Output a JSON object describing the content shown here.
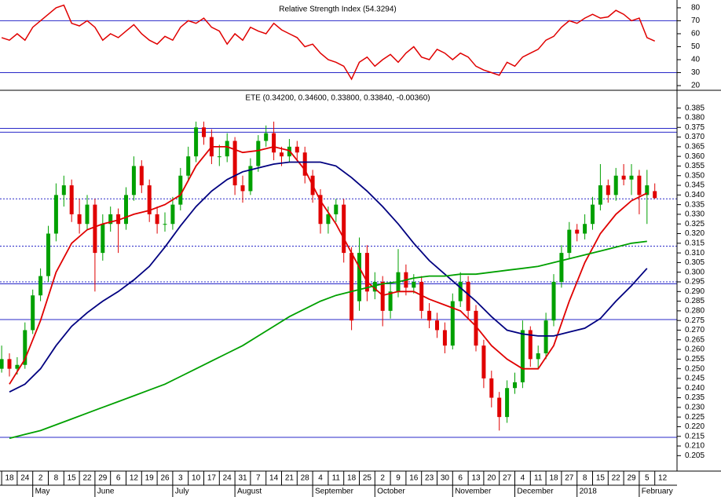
{
  "chart_data": {
    "type": "candlestick",
    "title": "ETE (0.34200, 0.34600, 0.33800, 0.33840, -0.00360)",
    "categories": [
      "18",
      "24",
      "2",
      "8",
      "15",
      "22",
      "29",
      "6",
      "12",
      "19",
      "26",
      "3",
      "10",
      "17",
      "24",
      "31",
      "7",
      "14",
      "21",
      "28",
      "4",
      "11",
      "18",
      "25",
      "2",
      "9",
      "16",
      "23",
      "30",
      "6",
      "13",
      "20",
      "27",
      "4",
      "11",
      "18",
      "27",
      "8",
      "15",
      "22",
      "29",
      "5",
      "12"
    ],
    "months": [
      null,
      null,
      "May",
      null,
      null,
      null,
      "June",
      null,
      null,
      null,
      null,
      "July",
      null,
      null,
      null,
      "August",
      null,
      null,
      null,
      null,
      "September",
      null,
      null,
      null,
      "October",
      null,
      null,
      null,
      null,
      "November",
      null,
      null,
      null,
      "December",
      null,
      null,
      null,
      "2018",
      null,
      null,
      null,
      "February",
      null
    ],
    "x": [
      -0.5,
      0,
      0.5,
      1,
      1.5,
      2,
      2.5,
      3,
      3.5,
      4,
      4.5,
      5,
      5.5,
      6,
      6.5,
      7,
      7.5,
      8,
      8.5,
      9,
      9.5,
      10,
      10.5,
      11,
      11.5,
      12,
      12.5,
      13,
      13.5,
      14,
      14.5,
      15,
      15.5,
      16,
      16.5,
      17,
      17.5,
      18,
      18.5,
      19,
      19.5,
      20,
      20.5,
      21,
      21.5,
      22,
      22.5,
      23,
      23.5,
      24,
      24.5,
      25,
      25.5,
      26,
      26.5,
      27,
      27.5,
      28,
      28.5,
      29,
      29.5,
      30,
      30.5,
      31,
      31.5,
      32,
      32.5,
      33,
      33.5,
      34,
      34.5,
      35,
      35.5,
      36,
      36.5,
      37,
      37.5,
      38,
      38.5,
      39,
      39.5,
      40,
      40.5,
      41,
      41.5
    ],
    "ohlc": [
      [
        0.25,
        0.262,
        0.248,
        0.255
      ],
      [
        0.255,
        0.258,
        0.246,
        0.25
      ],
      [
        0.25,
        0.256,
        0.247,
        0.252
      ],
      [
        0.252,
        0.274,
        0.25,
        0.27
      ],
      [
        0.27,
        0.291,
        0.268,
        0.288
      ],
      [
        0.288,
        0.302,
        0.285,
        0.298
      ],
      [
        0.298,
        0.324,
        0.295,
        0.32
      ],
      [
        0.32,
        0.346,
        0.316,
        0.34
      ],
      [
        0.34,
        0.35,
        0.334,
        0.345
      ],
      [
        0.345,
        0.348,
        0.326,
        0.33
      ],
      [
        0.33,
        0.338,
        0.32,
        0.325
      ],
      [
        0.325,
        0.34,
        0.322,
        0.335
      ],
      [
        0.335,
        0.338,
        0.29,
        0.31
      ],
      [
        0.31,
        0.33,
        0.306,
        0.325
      ],
      [
        0.325,
        0.334,
        0.321,
        0.33
      ],
      [
        0.33,
        0.333,
        0.31,
        0.325
      ],
      [
        0.325,
        0.344,
        0.322,
        0.34
      ],
      [
        0.34,
        0.36,
        0.337,
        0.355
      ],
      [
        0.355,
        0.358,
        0.341,
        0.345
      ],
      [
        0.345,
        0.348,
        0.326,
        0.33
      ],
      [
        0.33,
        0.334,
        0.32,
        0.325
      ],
      [
        0.325,
        0.331,
        0.321,
        0.325
      ],
      [
        0.325,
        0.339,
        0.322,
        0.335
      ],
      [
        0.335,
        0.354,
        0.332,
        0.35
      ],
      [
        0.35,
        0.365,
        0.347,
        0.36
      ],
      [
        0.36,
        0.378,
        0.357,
        0.375
      ],
      [
        0.375,
        0.378,
        0.366,
        0.37
      ],
      [
        0.37,
        0.374,
        0.356,
        0.36
      ],
      [
        0.36,
        0.366,
        0.355,
        0.36
      ],
      [
        0.36,
        0.372,
        0.357,
        0.368
      ],
      [
        0.368,
        0.37,
        0.34,
        0.345
      ],
      [
        0.345,
        0.35,
        0.336,
        0.342
      ],
      [
        0.342,
        0.359,
        0.34,
        0.355
      ],
      [
        0.355,
        0.371,
        0.352,
        0.368
      ],
      [
        0.368,
        0.376,
        0.365,
        0.372
      ],
      [
        0.372,
        0.378,
        0.358,
        0.362
      ],
      [
        0.362,
        0.365,
        0.355,
        0.36
      ],
      [
        0.36,
        0.369,
        0.357,
        0.365
      ],
      [
        0.365,
        0.368,
        0.358,
        0.362
      ],
      [
        0.362,
        0.365,
        0.346,
        0.35
      ],
      [
        0.35,
        0.353,
        0.336,
        0.34
      ],
      [
        0.34,
        0.343,
        0.32,
        0.325
      ],
      [
        0.325,
        0.334,
        0.32,
        0.33
      ],
      [
        0.33,
        0.338,
        0.326,
        0.335
      ],
      [
        0.335,
        0.338,
        0.305,
        0.31
      ],
      [
        0.31,
        0.313,
        0.27,
        0.275
      ],
      [
        0.285,
        0.318,
        0.28,
        0.31
      ],
      [
        0.31,
        0.314,
        0.285,
        0.29
      ],
      [
        0.29,
        0.3,
        0.286,
        0.295
      ],
      [
        0.295,
        0.298,
        0.272,
        0.28
      ],
      [
        0.28,
        0.294,
        0.276,
        0.29
      ],
      [
        0.29,
        0.312,
        0.287,
        0.3
      ],
      [
        0.3,
        0.304,
        0.288,
        0.292
      ],
      [
        0.292,
        0.299,
        0.289,
        0.295
      ],
      [
        0.295,
        0.298,
        0.276,
        0.28
      ],
      [
        0.28,
        0.284,
        0.271,
        0.275
      ],
      [
        0.275,
        0.279,
        0.266,
        0.27
      ],
      [
        0.27,
        0.274,
        0.258,
        0.262
      ],
      [
        0.262,
        0.289,
        0.26,
        0.285
      ],
      [
        0.285,
        0.3,
        0.282,
        0.295
      ],
      [
        0.295,
        0.298,
        0.276,
        0.28
      ],
      [
        0.28,
        0.283,
        0.259,
        0.262
      ],
      [
        0.262,
        0.265,
        0.24,
        0.245
      ],
      [
        0.245,
        0.249,
        0.23,
        0.235
      ],
      [
        0.235,
        0.238,
        0.218,
        0.225
      ],
      [
        0.225,
        0.244,
        0.222,
        0.24
      ],
      [
        0.24,
        0.248,
        0.237,
        0.243
      ],
      [
        0.243,
        0.275,
        0.24,
        0.27
      ],
      [
        0.27,
        0.272,
        0.251,
        0.255
      ],
      [
        0.255,
        0.262,
        0.25,
        0.258
      ],
      [
        0.258,
        0.279,
        0.255,
        0.275
      ],
      [
        0.275,
        0.299,
        0.272,
        0.295
      ],
      [
        0.295,
        0.314,
        0.292,
        0.31
      ],
      [
        0.31,
        0.326,
        0.307,
        0.322
      ],
      [
        0.322,
        0.325,
        0.316,
        0.32
      ],
      [
        0.32,
        0.33,
        0.317,
        0.325
      ],
      [
        0.325,
        0.339,
        0.322,
        0.335
      ],
      [
        0.335,
        0.356,
        0.332,
        0.345
      ],
      [
        0.345,
        0.348,
        0.336,
        0.34
      ],
      [
        0.34,
        0.354,
        0.337,
        0.35
      ],
      [
        0.35,
        0.356,
        0.345,
        0.348
      ],
      [
        0.348,
        0.356,
        0.34,
        0.35
      ],
      [
        0.35,
        0.353,
        0.33,
        0.34
      ],
      [
        0.34,
        0.353,
        0.325,
        0.345
      ],
      [
        0.342,
        0.346,
        0.338,
        0.3384
      ]
    ],
    "up_color": "#00a000",
    "down_color": "#e00000",
    "series": [
      {
        "color": "#e00000",
        "x": [
          0,
          1,
          2,
          3,
          4,
          5,
          6,
          7,
          8,
          9,
          10,
          11,
          12,
          13,
          14,
          15,
          16,
          17,
          18,
          19,
          20,
          21,
          22,
          23,
          24,
          25,
          26,
          27,
          28,
          29,
          30,
          31,
          32,
          33,
          34,
          35,
          36,
          37,
          38,
          39,
          40,
          41
        ],
        "values": [
          0.242,
          0.255,
          0.275,
          0.3,
          0.315,
          0.322,
          0.325,
          0.327,
          0.33,
          0.332,
          0.335,
          0.34,
          0.355,
          0.365,
          0.365,
          0.362,
          0.363,
          0.365,
          0.363,
          0.353,
          0.337,
          0.325,
          0.31,
          0.295,
          0.288,
          0.29,
          0.29,
          0.286,
          0.283,
          0.28,
          0.272,
          0.262,
          0.255,
          0.25,
          0.25,
          0.262,
          0.285,
          0.305,
          0.32,
          0.33,
          0.337,
          0.341
        ]
      },
      {
        "color": "#000080",
        "x": [
          0,
          1,
          2,
          3,
          4,
          5,
          6,
          7,
          8,
          9,
          10,
          11,
          12,
          13,
          14,
          15,
          16,
          17,
          18,
          19,
          20,
          21,
          22,
          23,
          24,
          25,
          26,
          27,
          28,
          29,
          30,
          31,
          32,
          33,
          34,
          35,
          36,
          37,
          38,
          39,
          40,
          41
        ],
        "values": [
          0.238,
          0.242,
          0.25,
          0.262,
          0.272,
          0.279,
          0.285,
          0.29,
          0.296,
          0.303,
          0.313,
          0.324,
          0.334,
          0.342,
          0.348,
          0.352,
          0.354,
          0.356,
          0.357,
          0.357,
          0.357,
          0.355,
          0.349,
          0.342,
          0.334,
          0.325,
          0.315,
          0.306,
          0.299,
          0.292,
          0.285,
          0.277,
          0.27,
          0.268,
          0.267,
          0.267,
          0.269,
          0.271,
          0.276,
          0.285,
          0.293,
          0.302
        ]
      },
      {
        "color": "#00a000",
        "x": [
          0,
          1,
          2,
          3,
          4,
          5,
          6,
          7,
          8,
          9,
          10,
          11,
          12,
          13,
          14,
          15,
          16,
          17,
          18,
          19,
          20,
          21,
          22,
          23,
          24,
          25,
          26,
          27,
          28,
          29,
          30,
          31,
          32,
          33,
          34,
          35,
          36,
          37,
          38,
          39,
          40,
          41
        ],
        "values": [
          0.214,
          0.216,
          0.218,
          0.221,
          0.224,
          0.227,
          0.23,
          0.233,
          0.236,
          0.239,
          0.242,
          0.246,
          0.25,
          0.254,
          0.258,
          0.262,
          0.267,
          0.272,
          0.277,
          0.281,
          0.285,
          0.288,
          0.29,
          0.292,
          0.294,
          0.295,
          0.297,
          0.298,
          0.298,
          0.299,
          0.299,
          0.3,
          0.301,
          0.302,
          0.303,
          0.305,
          0.307,
          0.309,
          0.311,
          0.313,
          0.315,
          0.316
        ]
      }
    ],
    "levels": [
      {
        "value": 0.3745,
        "style": "solid"
      },
      {
        "value": 0.3725,
        "style": "solid"
      },
      {
        "value": 0.338,
        "style": "dotted"
      },
      {
        "value": 0.3135,
        "style": "dotted"
      },
      {
        "value": 0.295,
        "style": "dotted"
      },
      {
        "value": 0.294,
        "style": "solid"
      },
      {
        "value": 0.2755,
        "style": "solid"
      },
      {
        "value": 0.2145,
        "style": "solid"
      }
    ],
    "level_color": "#2828c8",
    "ylim": [
      0.197,
      0.393
    ],
    "yticks": [
      0.205,
      {
        "value": 0.21,
        "label": "0.210"
      },
      0.215,
      {
        "value": 0.22,
        "label": "0.220"
      },
      0.225,
      {
        "value": 0.23,
        "label": "0.230"
      },
      0.235,
      {
        "value": 0.24,
        "label": "0.240"
      },
      0.245,
      {
        "value": 0.25,
        "label": "0.250"
      },
      0.255,
      {
        "value": 0.26,
        "label": "0.260"
      },
      0.265,
      {
        "value": 0.27,
        "label": "0.270"
      },
      0.275,
      {
        "value": 0.28,
        "label": "0.280"
      },
      0.285,
      {
        "value": 0.29,
        "label": "0.290"
      },
      0.295,
      {
        "value": 0.3,
        "label": "0.300"
      },
      0.305,
      {
        "value": 0.31,
        "label": "0.310"
      },
      0.315,
      {
        "value": 0.32,
        "label": "0.320"
      },
      0.325,
      {
        "value": 0.33,
        "label": "0.330"
      },
      0.335,
      {
        "value": 0.34,
        "label": "0.340"
      },
      0.345,
      {
        "value": 0.35,
        "label": "0.350"
      },
      0.355,
      {
        "value": 0.36,
        "label": "0.360"
      },
      0.365,
      {
        "value": 0.37,
        "label": "0.370"
      },
      0.375,
      {
        "value": 0.38,
        "label": "0.380"
      },
      0.385
    ],
    "rsi": {
      "title": "Relative Strength Index (54.3294)",
      "color": "#e00000",
      "values": [
        57,
        55,
        60,
        55,
        65,
        70,
        75,
        80,
        82,
        68,
        66,
        70,
        65,
        55,
        60,
        57,
        62,
        67,
        60,
        55,
        52,
        58,
        55,
        65,
        70,
        68,
        72,
        65,
        62,
        52,
        60,
        55,
        65,
        62,
        60,
        68,
        63,
        60,
        57,
        50,
        52,
        45,
        40,
        38,
        35,
        25,
        38,
        42,
        35,
        40,
        44,
        38,
        45,
        50,
        42,
        40,
        48,
        45,
        40,
        45,
        42,
        35,
        32,
        30,
        28,
        38,
        35,
        42,
        45,
        48,
        55,
        58,
        65,
        70,
        68,
        72,
        75,
        72,
        73,
        78,
        75,
        70,
        72,
        57,
        54.3294
      ],
      "levels": [
        70,
        30
      ],
      "ylim": [
        17.6,
        86
      ],
      "yticks": [
        20,
        30,
        40,
        50,
        60,
        70,
        80
      ]
    }
  }
}
